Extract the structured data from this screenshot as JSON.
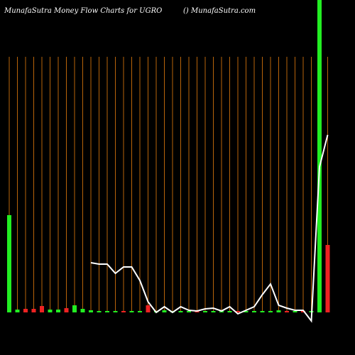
{
  "chart_data": {
    "type": "bar",
    "title": "MunafaSutra  Money Flow  Charts for UGRO",
    "subtitle": "() MunafaSutra.com",
    "categories": [
      null,
      null,
      null,
      null,
      null,
      null,
      null,
      null,
      null,
      null,
      null,
      null,
      null,
      null,
      null,
      null,
      null,
      null,
      null,
      null,
      null,
      null,
      null,
      null,
      null,
      null,
      null,
      null,
      null,
      null,
      null,
      null,
      null,
      null,
      null,
      null,
      null,
      null,
      null,
      null
    ],
    "values": [
      137,
      4,
      5,
      5,
      9,
      4,
      4,
      6,
      10,
      5,
      3,
      2,
      2,
      2,
      2,
      2,
      2,
      10,
      2,
      3,
      2,
      2,
      2,
      2,
      2,
      2,
      2,
      2,
      2,
      2,
      2,
      2,
      2,
      3,
      2,
      2,
      2,
      2,
      440,
      95
    ],
    "colors": [
      "#22ee22",
      "#22ee22",
      "#ee2222",
      "#ee2222",
      "#ee2222",
      "#22ee22",
      "#22ee22",
      "#ee2222",
      "#22ee22",
      "#22ee22",
      "#22ee22",
      "#22ee22",
      "#22ee22",
      "#22ee22",
      "#ee2222",
      "#22ee22",
      "#22ee22",
      "#ee2222",
      "#22ee22",
      "#22ee22",
      "#22ee22",
      "#22ee22",
      "#22ee22",
      "#ee2222",
      "#22ee22",
      "#22ee22",
      "#22ee22",
      "#22ee22",
      "#ee2222",
      "#22ee22",
      "#22ee22",
      "#22ee22",
      "#22ee22",
      "#22ee22",
      "#ee2222",
      "#22ee22",
      "#ee2222",
      "#22ee22",
      "#22ee22",
      "#ee2222"
    ],
    "line": {
      "color": "#ffffff",
      "values": [
        null,
        null,
        null,
        null,
        null,
        null,
        null,
        null,
        null,
        null,
        70,
        68,
        68,
        55,
        64,
        64,
        45,
        15,
        0,
        8,
        0,
        8,
        3,
        2,
        5,
        6,
        2,
        8,
        -2,
        3,
        8,
        25,
        40,
        10,
        6,
        3,
        3,
        -12,
        205,
        250
      ]
    },
    "ylim": [
      0,
      440
    ]
  }
}
